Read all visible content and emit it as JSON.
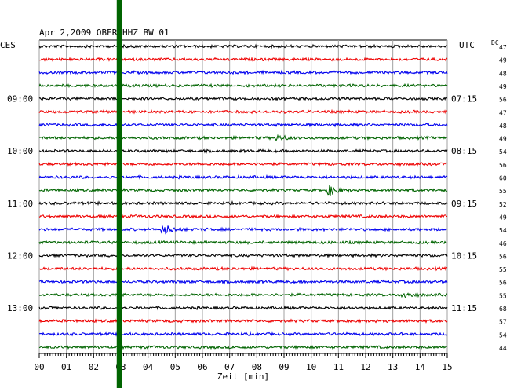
{
  "chart_data": {
    "type": "line",
    "title": "Apr 2,2009   OBER HHZ BW 01",
    "left_axis_label": "CES",
    "right_axis_label": "UTC",
    "right_column_label": "DC",
    "xlabel": "Zeit [min]",
    "x_ticks": [
      "00",
      "01",
      "02",
      "03",
      "04",
      "05",
      "06",
      "07",
      "08",
      "09",
      "10",
      "11",
      "12",
      "13",
      "14",
      "15"
    ],
    "xlim": [
      0,
      15
    ],
    "grid": true,
    "trace_colors": [
      "#000000",
      "#ee0000",
      "#0000ee",
      "#006400"
    ],
    "time_labels": [
      {
        "trace_index": 4,
        "local": "09:00",
        "utc": "07:15"
      },
      {
        "trace_index": 8,
        "local": "10:00",
        "utc": "08:15"
      },
      {
        "trace_index": 12,
        "local": "11:00",
        "utc": "09:15"
      },
      {
        "trace_index": 16,
        "local": "12:00",
        "utc": "10:15"
      },
      {
        "trace_index": 20,
        "local": "13:00",
        "utc": "11:15"
      }
    ],
    "dc_values": [
      "47",
      "49",
      "48",
      "49",
      "56",
      "47",
      "48",
      "49",
      "54",
      "56",
      "60",
      "55",
      "52",
      "49",
      "54",
      "46",
      "56",
      "55",
      "56",
      "55",
      "68",
      "57",
      "54",
      "44"
    ],
    "events": [
      {
        "trace_index": 11,
        "minute": 10.7,
        "amplitude": 6
      },
      {
        "trace_index": 14,
        "minute": 4.6,
        "amplitude": 6
      },
      {
        "trace_index": 19,
        "minute": 13.4,
        "amplitude": 4
      },
      {
        "trace_index": 7,
        "minute": 8.8,
        "amplitude": 3
      }
    ],
    "marker": {
      "minute": 2.95,
      "color": "#006400"
    }
  }
}
